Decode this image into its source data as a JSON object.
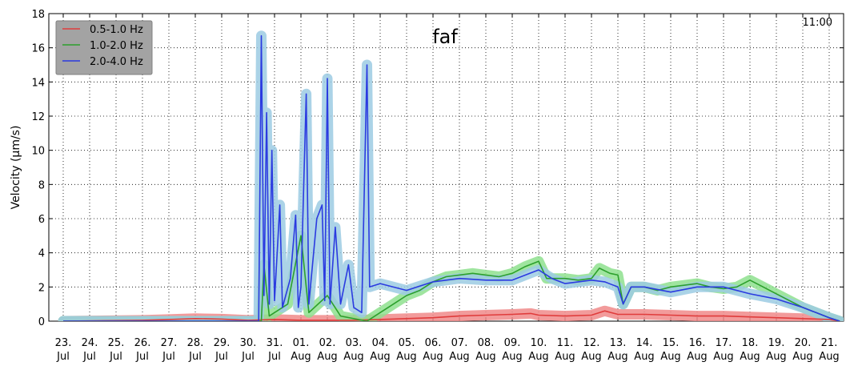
{
  "chart_data": {
    "type": "line",
    "title": "faf",
    "time_label": "11:00",
    "ylabel": "Velocity (μm/s)",
    "xlabel": "",
    "ylim": [
      0,
      18
    ],
    "yticks": [
      0,
      2,
      4,
      6,
      8,
      10,
      12,
      14,
      16,
      18
    ],
    "grid": true,
    "legend_position": "top-left",
    "x_start": "23 Jul",
    "x_end": "21 Aug",
    "x_tick_labels": [
      [
        "23.",
        "Jul"
      ],
      [
        "24.",
        "Jul"
      ],
      [
        "25.",
        "Jul"
      ],
      [
        "26.",
        "Jul"
      ],
      [
        "27.",
        "Jul"
      ],
      [
        "28.",
        "Jul"
      ],
      [
        "29.",
        "Jul"
      ],
      [
        "30.",
        "Jul"
      ],
      [
        "31.",
        "Jul"
      ],
      [
        "01.",
        "Aug"
      ],
      [
        "02.",
        "Aug"
      ],
      [
        "03.",
        "Aug"
      ],
      [
        "04.",
        "Aug"
      ],
      [
        "05.",
        "Aug"
      ],
      [
        "06.",
        "Aug"
      ],
      [
        "07.",
        "Aug"
      ],
      [
        "08.",
        "Aug"
      ],
      [
        "09.",
        "Aug"
      ],
      [
        "10.",
        "Aug"
      ],
      [
        "11.",
        "Aug"
      ],
      [
        "12.",
        "Aug"
      ],
      [
        "13.",
        "Aug"
      ],
      [
        "14.",
        "Aug"
      ],
      [
        "15.",
        "Aug"
      ],
      [
        "16.",
        "Aug"
      ],
      [
        "17.",
        "Aug"
      ],
      [
        "18.",
        "Aug"
      ],
      [
        "19.",
        "Aug"
      ],
      [
        "20.",
        "Aug"
      ],
      [
        "21.",
        "Aug"
      ]
    ],
    "series": [
      {
        "name": "0.5-1.0 Hz",
        "color": "#e03c3c",
        "halo_color": "#f08a8a",
        "points": [
          [
            "23 Jul",
            0.0
          ],
          [
            "26 Jul",
            0.05
          ],
          [
            "27 Jul",
            0.1
          ],
          [
            "28 Jul",
            0.15
          ],
          [
            "29 Jul",
            0.12
          ],
          [
            "30 Jul",
            0.05
          ],
          [
            "31 Jul",
            0.1
          ],
          [
            "01 Aug",
            0.05
          ],
          [
            "03 Aug",
            0.05
          ],
          [
            "04 Aug",
            0.1
          ],
          [
            "05 Aug",
            0.15
          ],
          [
            "06 Aug",
            0.2
          ],
          [
            "07 Aug",
            0.3
          ],
          [
            "08 Aug",
            0.35
          ],
          [
            "09 Aug",
            0.4
          ],
          [
            "09.7 Aug",
            0.45
          ],
          [
            "10 Aug",
            0.35
          ],
          [
            "11 Aug",
            0.3
          ],
          [
            "12 Aug",
            0.35
          ],
          [
            "12.5 Aug",
            0.6
          ],
          [
            "13 Aug",
            0.4
          ],
          [
            "14 Aug",
            0.4
          ],
          [
            "15 Aug",
            0.35
          ],
          [
            "16 Aug",
            0.3
          ],
          [
            "17 Aug",
            0.3
          ],
          [
            "18 Aug",
            0.25
          ],
          [
            "19 Aug",
            0.2
          ],
          [
            "20 Aug",
            0.15
          ],
          [
            "21 Aug",
            0.1
          ],
          [
            "21.4 Aug",
            0.0
          ]
        ]
      },
      {
        "name": "1.0-2.0 Hz",
        "color": "#2ca02c",
        "halo_color": "#8ee08e",
        "points": [
          [
            "23 Jul",
            0.0
          ],
          [
            "30.5 Jul",
            0.0
          ],
          [
            "30.6 Jul",
            3.3
          ],
          [
            "30.8 Jul",
            0.3
          ],
          [
            "31.5 Jul",
            1.0
          ],
          [
            "01 Aug",
            5.0
          ],
          [
            "01.3 Aug",
            0.5
          ],
          [
            "02 Aug",
            1.5
          ],
          [
            "02.5 Aug",
            0.3
          ],
          [
            "03.5 Aug",
            0.0
          ],
          [
            "04 Aug",
            0.5
          ],
          [
            "04.5 Aug",
            1.0
          ],
          [
            "05 Aug",
            1.5
          ],
          [
            "05.5 Aug",
            1.8
          ],
          [
            "06 Aug",
            2.3
          ],
          [
            "06.5 Aug",
            2.6
          ],
          [
            "07 Aug",
            2.7
          ],
          [
            "07.5 Aug",
            2.8
          ],
          [
            "08 Aug",
            2.7
          ],
          [
            "08.5 Aug",
            2.6
          ],
          [
            "09 Aug",
            2.8
          ],
          [
            "09.5 Aug",
            3.2
          ],
          [
            "10 Aug",
            3.5
          ],
          [
            "10.3 Aug",
            2.5
          ],
          [
            "11 Aug",
            2.5
          ],
          [
            "11.5 Aug",
            2.4
          ],
          [
            "12 Aug",
            2.5
          ],
          [
            "12.3 Aug",
            3.1
          ],
          [
            "12.7 Aug",
            2.8
          ],
          [
            "13 Aug",
            2.7
          ],
          [
            "13.2 Aug",
            1.0
          ],
          [
            "13.5 Aug",
            2.0
          ],
          [
            "14 Aug",
            2.0
          ],
          [
            "14.5 Aug",
            1.8
          ],
          [
            "15 Aug",
            2.0
          ],
          [
            "15.5 Aug",
            2.1
          ],
          [
            "16 Aug",
            2.2
          ],
          [
            "16.5 Aug",
            2.0
          ],
          [
            "17 Aug",
            1.9
          ],
          [
            "17.5 Aug",
            2.0
          ],
          [
            "18 Aug",
            2.4
          ],
          [
            "18.5 Aug",
            2.0
          ],
          [
            "19 Aug",
            1.6
          ],
          [
            "19.5 Aug",
            1.2
          ],
          [
            "20 Aug",
            0.8
          ],
          [
            "20.5 Aug",
            0.5
          ],
          [
            "21 Aug",
            0.2
          ],
          [
            "21.4 Aug",
            0.0
          ]
        ]
      },
      {
        "name": "2.0-4.0 Hz",
        "color": "#2b3be0",
        "halo_color": "#9ccbe3",
        "points": [
          [
            "23 Jul",
            0.0
          ],
          [
            "30.4 Jul",
            0.0
          ],
          [
            "30.5 Jul",
            16.7
          ],
          [
            "30.6 Jul",
            1.5
          ],
          [
            "30.7 Jul",
            12.2
          ],
          [
            "30.8 Jul",
            1.0
          ],
          [
            "30.9 Jul",
            10.0
          ],
          [
            "31 Jul",
            1.2
          ],
          [
            "31.2 Jul",
            6.8
          ],
          [
            "31.3 Jul",
            0.8
          ],
          [
            "31.6 Jul",
            2.5
          ],
          [
            "31.8 Jul",
            6.2
          ],
          [
            "31.9 Jul",
            0.8
          ],
          [
            "01 Aug",
            2.0
          ],
          [
            "01.2 Aug",
            13.3
          ],
          [
            "01.3 Aug",
            1.0
          ],
          [
            "01.6 Aug",
            6.0
          ],
          [
            "01.8 Aug",
            6.8
          ],
          [
            "01.9 Aug",
            1.2
          ],
          [
            "02 Aug",
            14.2
          ],
          [
            "02.1 Aug",
            1.0
          ],
          [
            "02.3 Aug",
            5.5
          ],
          [
            "02.5 Aug",
            1.0
          ],
          [
            "02.8 Aug",
            3.3
          ],
          [
            "03 Aug",
            0.8
          ],
          [
            "03.3 Aug",
            0.5
          ],
          [
            "03.5 Aug",
            15.0
          ],
          [
            "03.6 Aug",
            2.0
          ],
          [
            "04 Aug",
            2.2
          ],
          [
            "05 Aug",
            1.8
          ],
          [
            "06 Aug",
            2.3
          ],
          [
            "07 Aug",
            2.5
          ],
          [
            "08 Aug",
            2.4
          ],
          [
            "09 Aug",
            2.4
          ],
          [
            "10 Aug",
            3.0
          ],
          [
            "10.5 Aug",
            2.5
          ],
          [
            "11 Aug",
            2.2
          ],
          [
            "12 Aug",
            2.4
          ],
          [
            "12.5 Aug",
            2.3
          ],
          [
            "13 Aug",
            2.0
          ],
          [
            "13.2 Aug",
            1.0
          ],
          [
            "13.5 Aug",
            2.0
          ],
          [
            "14 Aug",
            2.0
          ],
          [
            "15 Aug",
            1.7
          ],
          [
            "16 Aug",
            2.0
          ],
          [
            "17 Aug",
            2.0
          ],
          [
            "18 Aug",
            1.6
          ],
          [
            "19 Aug",
            1.3
          ],
          [
            "20 Aug",
            0.8
          ],
          [
            "20.5 Aug",
            0.5
          ],
          [
            "21 Aug",
            0.2
          ],
          [
            "21.4 Aug",
            0.0
          ]
        ]
      }
    ]
  }
}
